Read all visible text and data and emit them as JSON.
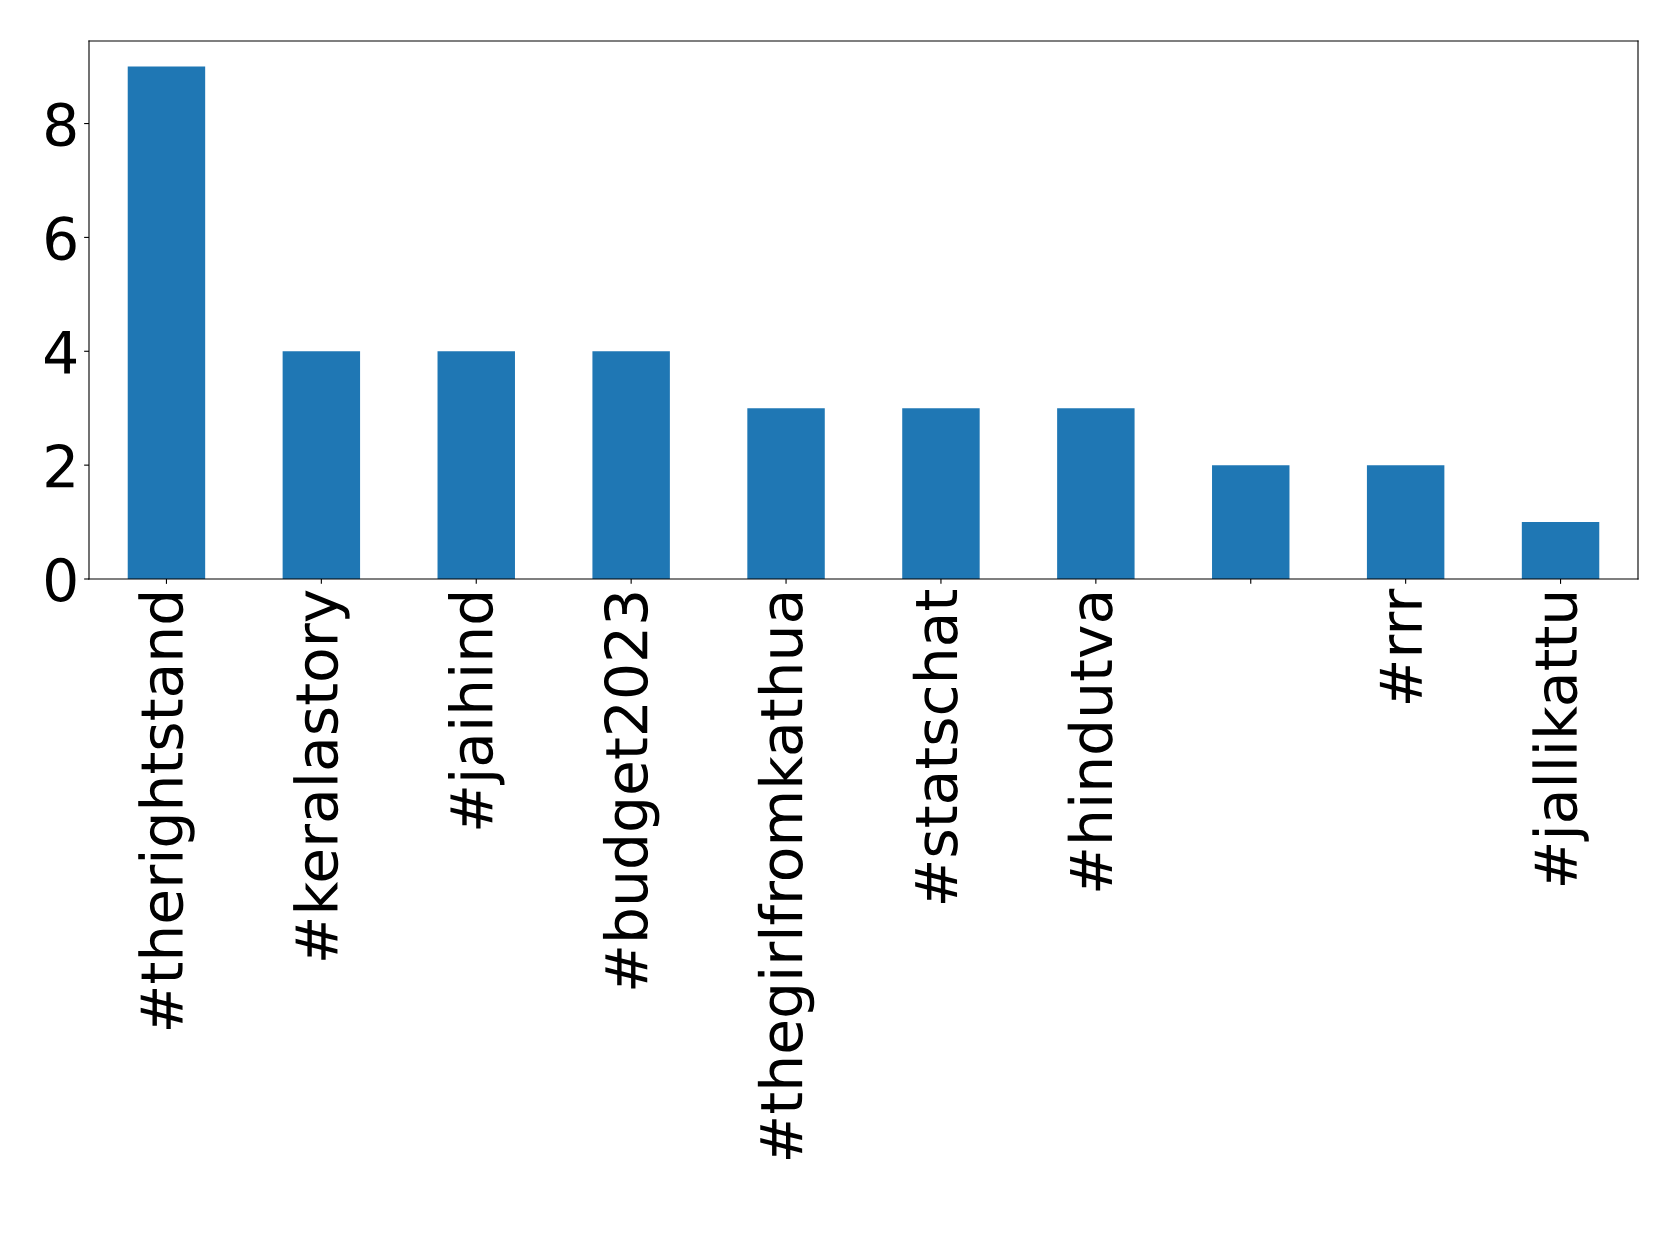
{
  "chart_data": {
    "type": "bar",
    "categories": [
      "#therightstand",
      "#keralastory",
      "#jaihind",
      "#budget2023",
      "#thegirlfromkathua",
      "#statschat",
      "#hindutva",
      null,
      "#rrr",
      "#jallikattu"
    ],
    "values": [
      9,
      4,
      4,
      4,
      3,
      3,
      3,
      2,
      2,
      1
    ],
    "color": "#1f77b4",
    "ylim": [
      0,
      9.45
    ],
    "yticks": [
      0,
      2,
      4,
      6,
      8
    ],
    "grid": false,
    "legend": false
  }
}
